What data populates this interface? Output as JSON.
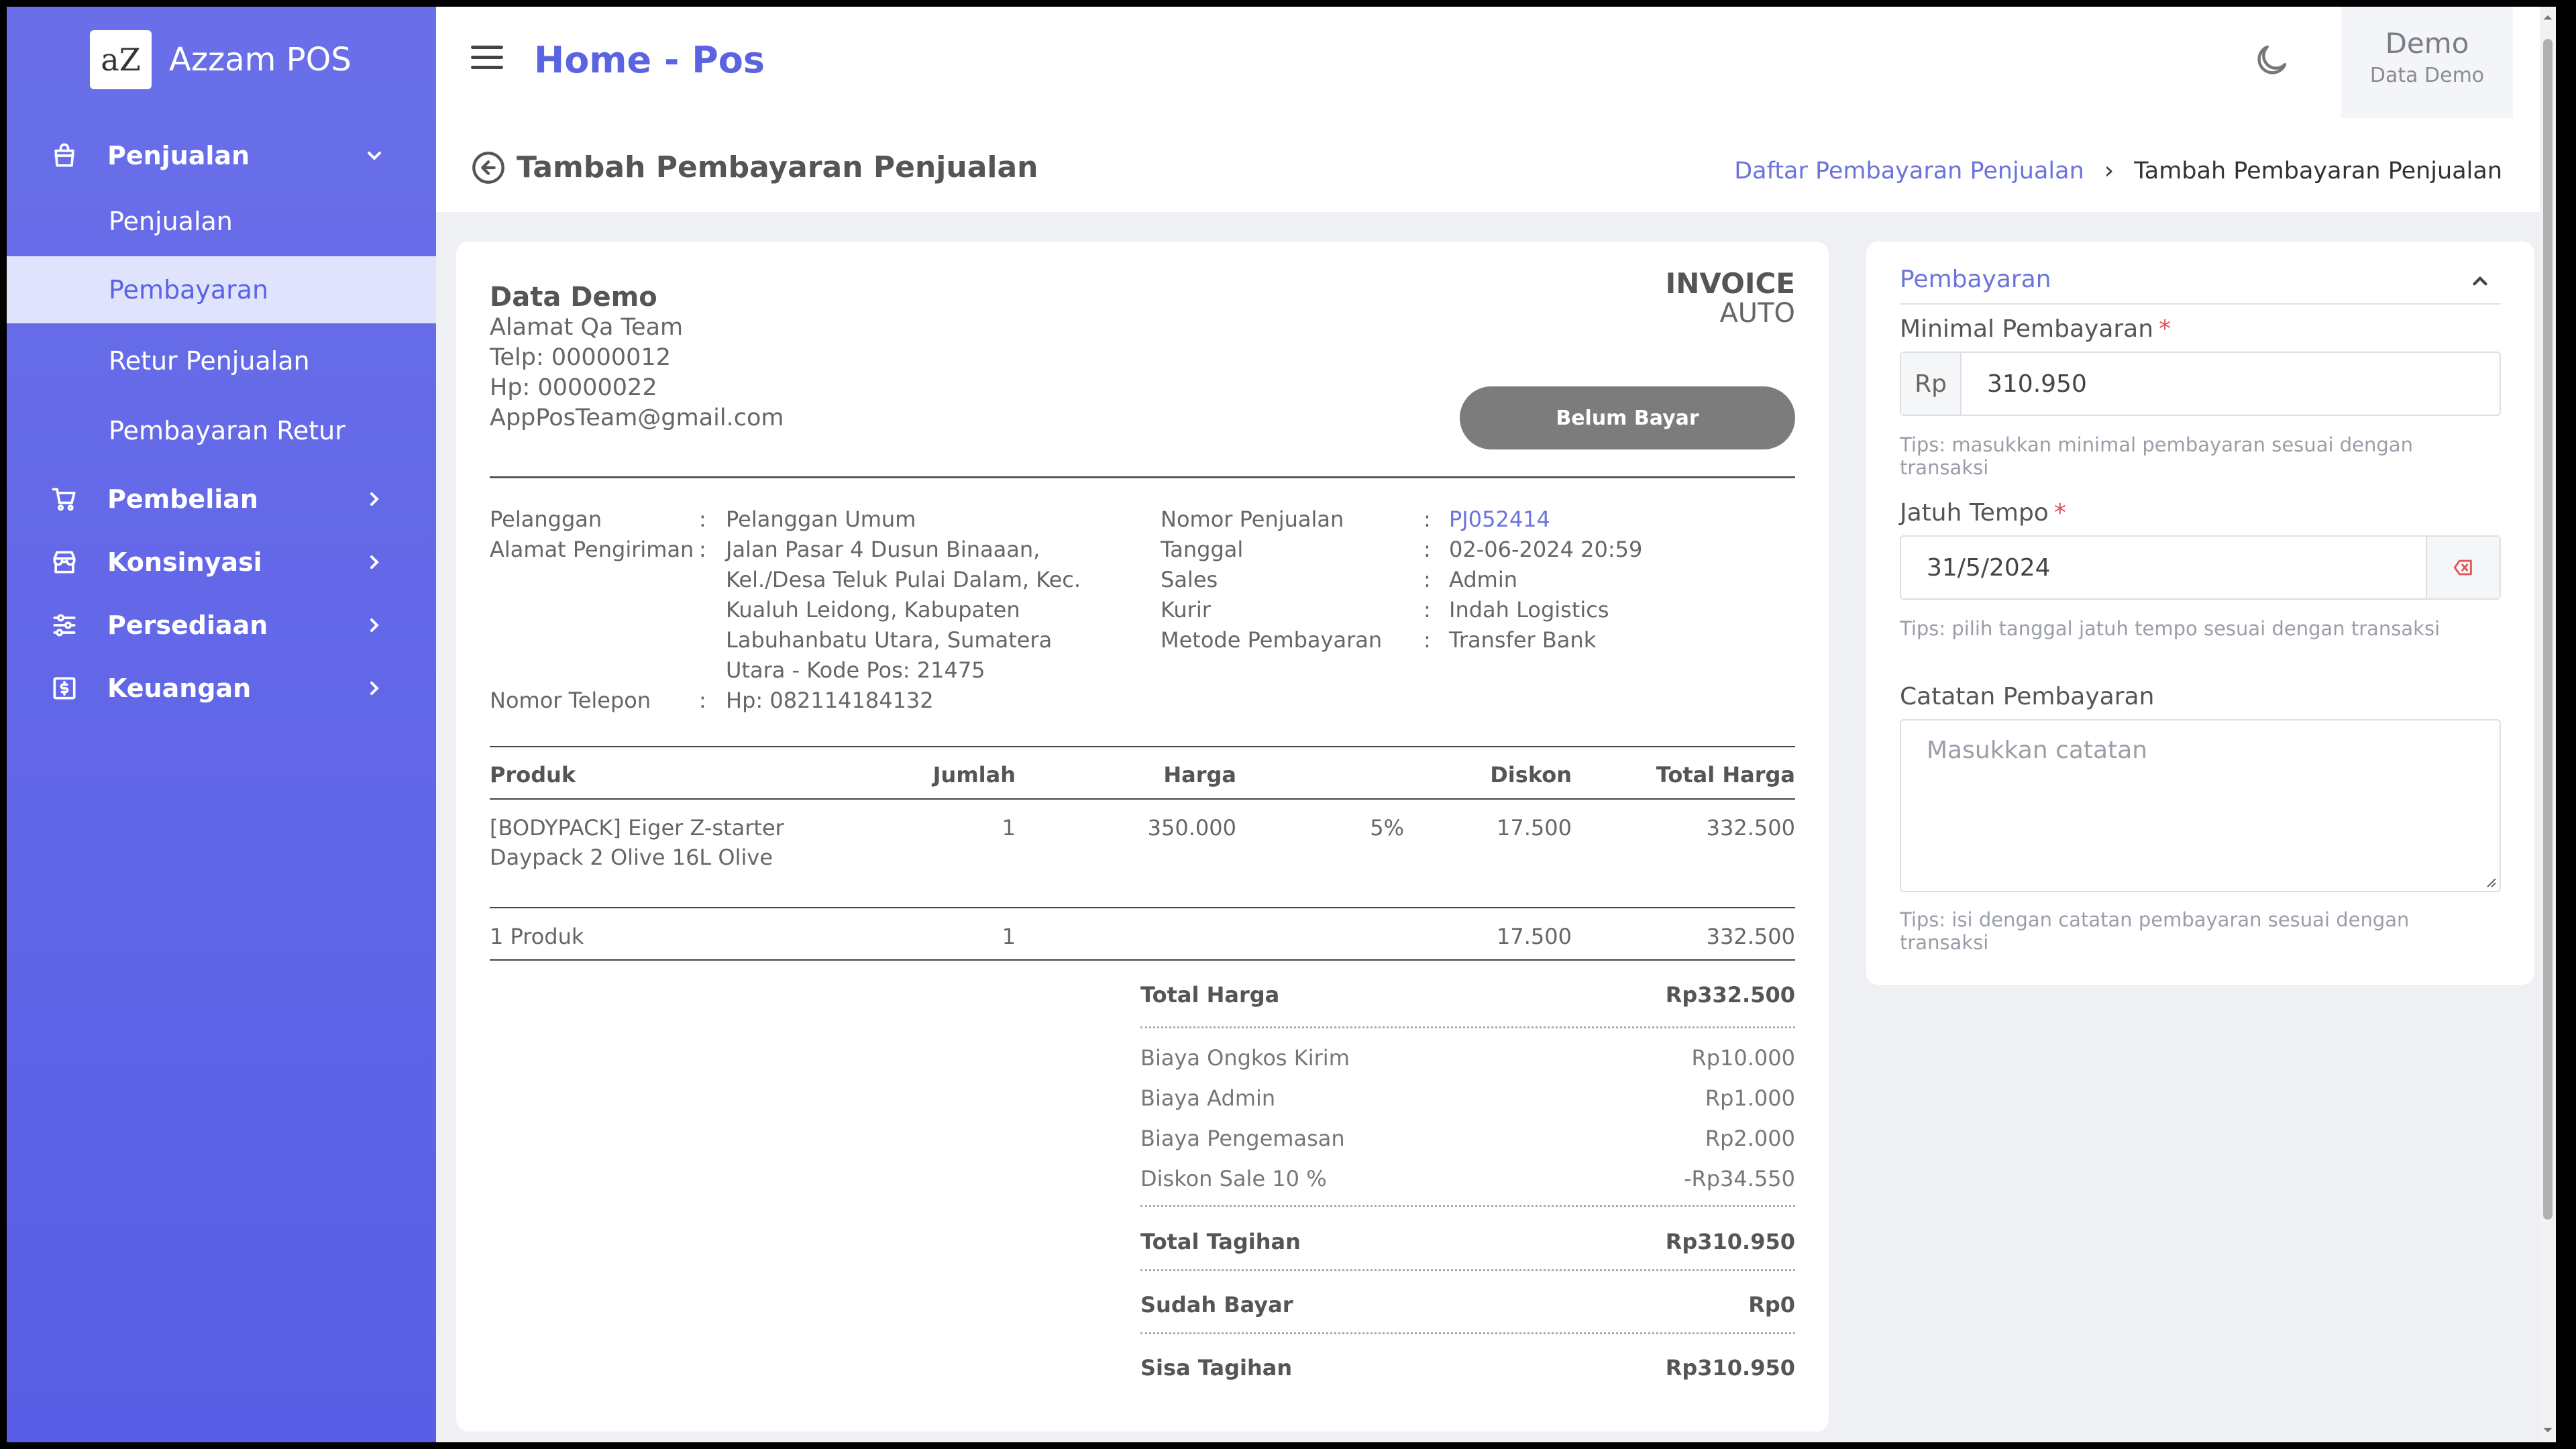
{
  "app": {
    "logo_text": "aZ",
    "name": "Azzam POS"
  },
  "sidebar": {
    "sections": [
      {
        "label": "Penjualan",
        "icon": "shopping-bag-icon",
        "expanded": true
      },
      {
        "label": "Pembelian",
        "icon": "cart-icon"
      },
      {
        "label": "Konsinyasi",
        "icon": "store-icon"
      },
      {
        "label": "Persediaan",
        "icon": "sliders-icon"
      },
      {
        "label": "Keuangan",
        "icon": "money-icon"
      }
    ],
    "sub_items": [
      {
        "label": "Penjualan"
      },
      {
        "label": "Pembayaran",
        "active": true
      },
      {
        "label": "Retur Penjualan"
      },
      {
        "label": "Pembayaran Retur"
      }
    ]
  },
  "topbar": {
    "title": "Home - Pos",
    "user_name": "Demo",
    "user_role": "Data Demo"
  },
  "page": {
    "title": "Tambah Pembayaran Penjualan",
    "breadcrumb": [
      "Daftar Pembayaran Penjualan",
      "Tambah Pembayaran Penjualan"
    ]
  },
  "invoice": {
    "company": {
      "name": "Data Demo",
      "address": "Alamat Qa Team",
      "telp": "Telp: 00000012",
      "hp": "Hp: 00000022",
      "email": "AppPosTeam@gmail.com"
    },
    "heading": "INVOICE",
    "number_mode": "AUTO",
    "status": "Belum Bayar",
    "customer": {
      "label_customer": "Pelanggan",
      "customer": "Pelanggan Umum",
      "label_address": "Alamat Pengiriman",
      "address_lines": [
        "Jalan Pasar 4 Dusun Binaaan,",
        "Kel./Desa Teluk Pulai Dalam, Kec.",
        "Kualuh Leidong, Kabupaten",
        "Labuhanbatu Utara, Sumatera",
        "Utara - Kode Pos: 21475"
      ],
      "label_phone": "Nomor Telepon",
      "phone": "Hp: 082114184132"
    },
    "meta": [
      {
        "label": "Nomor Penjualan",
        "value": "PJ052414"
      },
      {
        "label": "Tanggal",
        "value": "02-06-2024 20:59"
      },
      {
        "label": "Sales",
        "value": "Admin"
      },
      {
        "label": "Kurir",
        "value": "Indah Logistics"
      },
      {
        "label": "Metode Pembayaran",
        "value": "Transfer Bank"
      }
    ],
    "colon": ":",
    "table": {
      "headers": {
        "product": "Produk",
        "qty": "Jumlah",
        "price": "Harga",
        "discount": "Diskon",
        "total": "Total Harga"
      },
      "rows": [
        {
          "product_line1": "[BODYPACK] Eiger Z-starter",
          "product_line2": "Daypack 2 Olive 16L Olive",
          "qty": "1",
          "price": "350.000",
          "discount_pct": "5%",
          "discount": "17.500",
          "total": "332.500"
        }
      ],
      "footer": {
        "label": "1 Produk",
        "qty": "1",
        "discount": "17.500",
        "total": "332.500"
      }
    },
    "summary": {
      "total_harga": {
        "label": "Total Harga",
        "value": "Rp332.500"
      },
      "charges": [
        {
          "label": "Biaya Ongkos Kirim",
          "value": "Rp10.000"
        },
        {
          "label": "Biaya Admin",
          "value": "Rp1.000"
        },
        {
          "label": "Biaya Pengemasan",
          "value": "Rp2.000"
        },
        {
          "label": "Diskon Sale 10 %",
          "value": "-Rp34.550"
        }
      ],
      "total_tagihan": {
        "label": "Total Tagihan",
        "value": "Rp310.950"
      },
      "sudah_bayar": {
        "label": "Sudah Bayar",
        "value": "Rp0"
      },
      "sisa_tagihan": {
        "label": "Sisa Tagihan",
        "value": "Rp310.950"
      }
    }
  },
  "payment": {
    "section_title": "Pembayaran",
    "required_mark": "*",
    "min_label": "Minimal Pembayaran",
    "currency": "Rp",
    "min_value": "310.950",
    "min_tip": "Tips: masukkan minimal pembayaran sesuai dengan transaksi",
    "due_label": "Jatuh Tempo",
    "due_value": "31/5/2024",
    "due_tip": "Tips: pilih tanggal jatuh tempo sesuai dengan transaksi",
    "note_label": "Catatan Pembayaran",
    "note_placeholder": "Masukkan catatan",
    "note_tip": "Tips: isi dengan catatan pembayaran sesuai dengan transaksi"
  },
  "colors": {
    "sidebar": "#5b62e6",
    "accent": "#6b74dc",
    "status_pill": "#7c7c7c",
    "required": "#e25555"
  }
}
